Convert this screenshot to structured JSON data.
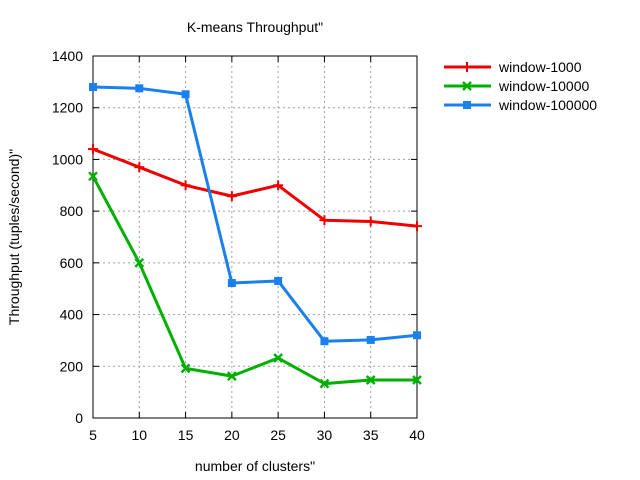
{
  "chart_data": {
    "type": "line",
    "title": "K-means Throughput\"",
    "xlabel": "number of clusters\"",
    "ylabel": "Throughput (tuples/second)\"",
    "x": [
      5,
      10,
      15,
      20,
      25,
      30,
      35,
      40
    ],
    "xlim": [
      5,
      40
    ],
    "ylim": [
      0,
      1400
    ],
    "xticks": [
      "5",
      "10",
      "15",
      "20",
      "25",
      "30",
      "35",
      "40"
    ],
    "yticks": [
      "0",
      "200",
      "400",
      "600",
      "800",
      "1000",
      "1200",
      "1400"
    ],
    "grid": true,
    "legend_position": "outside-right-top",
    "series": [
      {
        "name": "window-1000",
        "color": "#ee0000",
        "marker": "plus",
        "values": [
          1040,
          970,
          900,
          858,
          900,
          765,
          760,
          742
        ]
      },
      {
        "name": "window-10000",
        "color": "#00b000",
        "marker": "x",
        "values": [
          935,
          600,
          192,
          162,
          232,
          133,
          147,
          147
        ]
      },
      {
        "name": "window-100000",
        "color": "#1a80ee",
        "marker": "square",
        "values": [
          1280,
          1275,
          1252,
          522,
          530,
          297,
          302,
          320
        ]
      }
    ]
  }
}
